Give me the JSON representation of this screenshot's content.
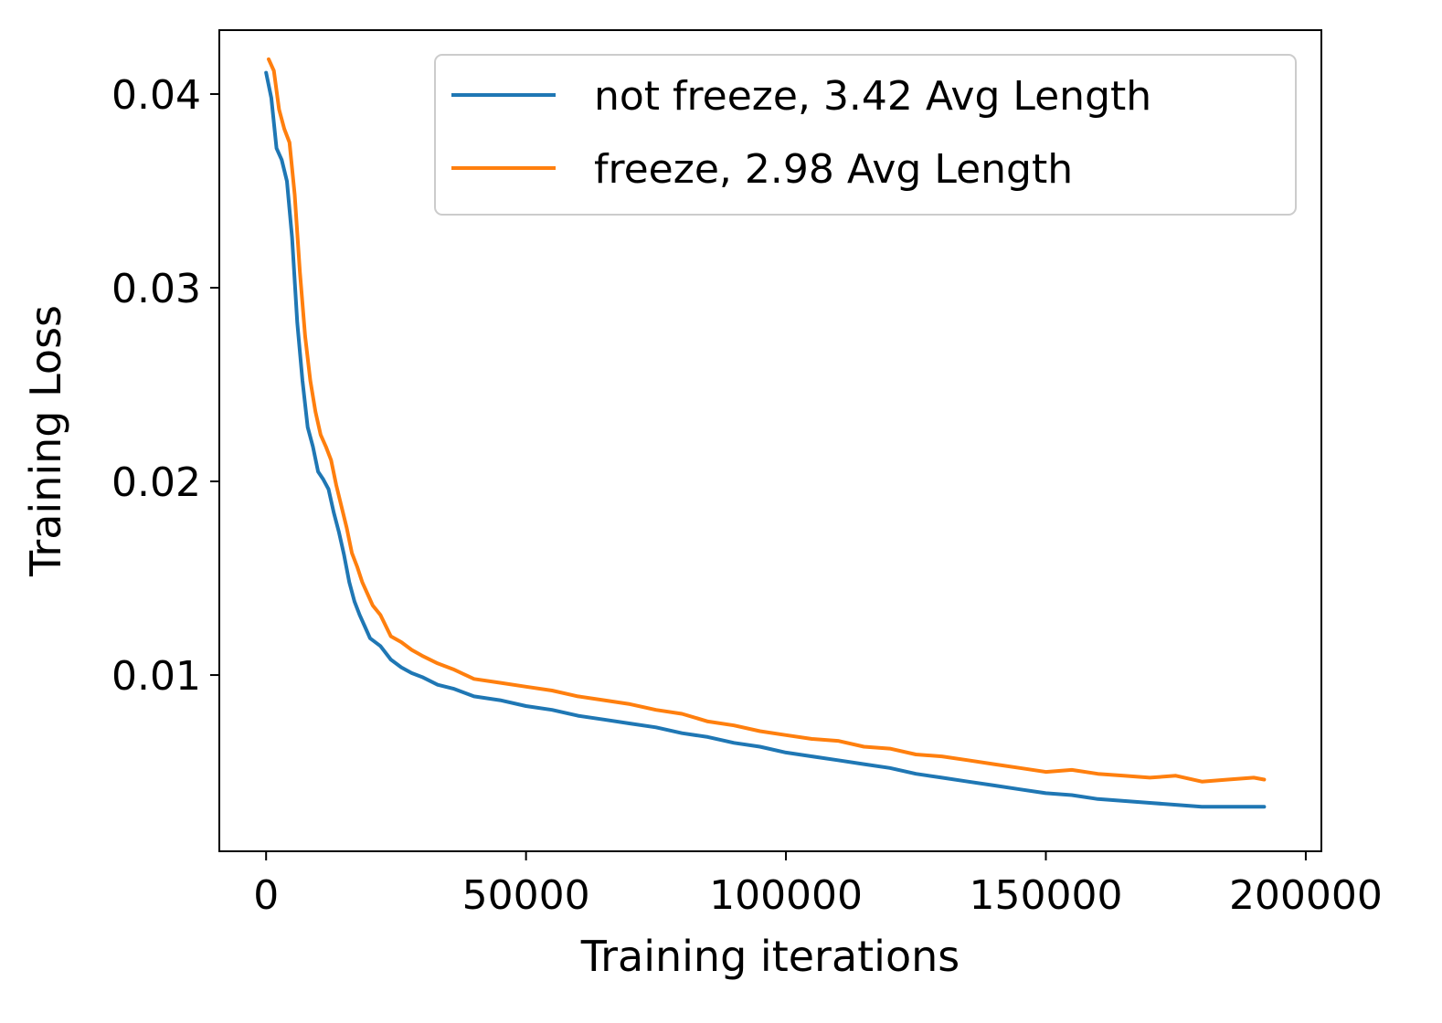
{
  "chart_data": {
    "type": "line",
    "title": "",
    "xlabel": "Training iterations",
    "ylabel": "Training Loss",
    "xlim": [
      -9000,
      203000
    ],
    "ylim": [
      0.0009,
      0.0433
    ],
    "xticks": [
      0,
      50000,
      100000,
      150000,
      200000
    ],
    "xtick_labels": [
      "0",
      "50000",
      "100000",
      "150000",
      "200000"
    ],
    "yticks": [
      0.01,
      0.02,
      0.03,
      0.04
    ],
    "ytick_labels": [
      "0.01",
      "0.02",
      "0.03",
      "0.04"
    ],
    "grid": false,
    "legend_position": "top-right",
    "series": [
      {
        "name": "not freeze, 3.42 Avg Length",
        "color": "#1f77b4",
        "points": [
          [
            0,
            0.0411
          ],
          [
            1000,
            0.0398
          ],
          [
            2000,
            0.0372
          ],
          [
            3000,
            0.0366
          ],
          [
            4000,
            0.0355
          ],
          [
            5000,
            0.0326
          ],
          [
            6000,
            0.0282
          ],
          [
            7000,
            0.0252
          ],
          [
            8000,
            0.0228
          ],
          [
            9000,
            0.0218
          ],
          [
            10000,
            0.0205
          ],
          [
            11000,
            0.0201
          ],
          [
            12000,
            0.0196
          ],
          [
            13000,
            0.0184
          ],
          [
            14000,
            0.0174
          ],
          [
            15000,
            0.0162
          ],
          [
            16000,
            0.0148
          ],
          [
            17000,
            0.0138
          ],
          [
            18000,
            0.0131
          ],
          [
            19000,
            0.0125
          ],
          [
            20000,
            0.0119
          ],
          [
            22000,
            0.0115
          ],
          [
            24000,
            0.0108
          ],
          [
            26000,
            0.0104
          ],
          [
            28000,
            0.0101
          ],
          [
            30000,
            0.0099
          ],
          [
            33000,
            0.0095
          ],
          [
            36000,
            0.0093
          ],
          [
            40000,
            0.0089
          ],
          [
            45000,
            0.0087
          ],
          [
            50000,
            0.0084
          ],
          [
            55000,
            0.0082
          ],
          [
            60000,
            0.0079
          ],
          [
            65000,
            0.0077
          ],
          [
            70000,
            0.0075
          ],
          [
            75000,
            0.0073
          ],
          [
            80000,
            0.007
          ],
          [
            85000,
            0.0068
          ],
          [
            90000,
            0.0065
          ],
          [
            95000,
            0.0063
          ],
          [
            100000,
            0.006
          ],
          [
            105000,
            0.0058
          ],
          [
            110000,
            0.0056
          ],
          [
            115000,
            0.0054
          ],
          [
            120000,
            0.0052
          ],
          [
            125000,
            0.0049
          ],
          [
            130000,
            0.0047
          ],
          [
            135000,
            0.0045
          ],
          [
            140000,
            0.0043
          ],
          [
            145000,
            0.0041
          ],
          [
            150000,
            0.0039
          ],
          [
            155000,
            0.0038
          ],
          [
            160000,
            0.0036
          ],
          [
            165000,
            0.0035
          ],
          [
            170000,
            0.0034
          ],
          [
            175000,
            0.0033
          ],
          [
            180000,
            0.0032
          ],
          [
            185000,
            0.0032
          ],
          [
            190000,
            0.0032
          ],
          [
            192000,
            0.0032
          ]
        ]
      },
      {
        "name": "freeze, 2.98 Avg Length",
        "color": "#ff7f0e",
        "points": [
          [
            500,
            0.0418
          ],
          [
            1500,
            0.0412
          ],
          [
            2500,
            0.0392
          ],
          [
            3500,
            0.0382
          ],
          [
            4500,
            0.0375
          ],
          [
            5500,
            0.0348
          ],
          [
            6500,
            0.0308
          ],
          [
            7500,
            0.0275
          ],
          [
            8500,
            0.0252
          ],
          [
            9500,
            0.0236
          ],
          [
            10500,
            0.0224
          ],
          [
            11500,
            0.0218
          ],
          [
            12500,
            0.0211
          ],
          [
            13500,
            0.0198
          ],
          [
            14500,
            0.0187
          ],
          [
            15500,
            0.0176
          ],
          [
            16500,
            0.0163
          ],
          [
            17500,
            0.0156
          ],
          [
            18500,
            0.0148
          ],
          [
            19500,
            0.0142
          ],
          [
            20500,
            0.0136
          ],
          [
            22000,
            0.0131
          ],
          [
            24000,
            0.012
          ],
          [
            26000,
            0.0117
          ],
          [
            28000,
            0.0113
          ],
          [
            30000,
            0.011
          ],
          [
            33000,
            0.0106
          ],
          [
            36000,
            0.0103
          ],
          [
            40000,
            0.0098
          ],
          [
            45000,
            0.0096
          ],
          [
            50000,
            0.0094
          ],
          [
            55000,
            0.0092
          ],
          [
            60000,
            0.0089
          ],
          [
            65000,
            0.0087
          ],
          [
            70000,
            0.0085
          ],
          [
            75000,
            0.0082
          ],
          [
            80000,
            0.008
          ],
          [
            85000,
            0.0076
          ],
          [
            90000,
            0.0074
          ],
          [
            95000,
            0.0071
          ],
          [
            100000,
            0.0069
          ],
          [
            105000,
            0.0067
          ],
          [
            110000,
            0.0066
          ],
          [
            115000,
            0.0063
          ],
          [
            120000,
            0.0062
          ],
          [
            125000,
            0.0059
          ],
          [
            130000,
            0.0058
          ],
          [
            135000,
            0.0056
          ],
          [
            140000,
            0.0054
          ],
          [
            145000,
            0.0052
          ],
          [
            150000,
            0.005
          ],
          [
            155000,
            0.0051
          ],
          [
            160000,
            0.0049
          ],
          [
            165000,
            0.0048
          ],
          [
            170000,
            0.0047
          ],
          [
            175000,
            0.0048
          ],
          [
            180000,
            0.0045
          ],
          [
            185000,
            0.0046
          ],
          [
            190000,
            0.0047
          ],
          [
            192000,
            0.0046
          ]
        ]
      }
    ]
  }
}
